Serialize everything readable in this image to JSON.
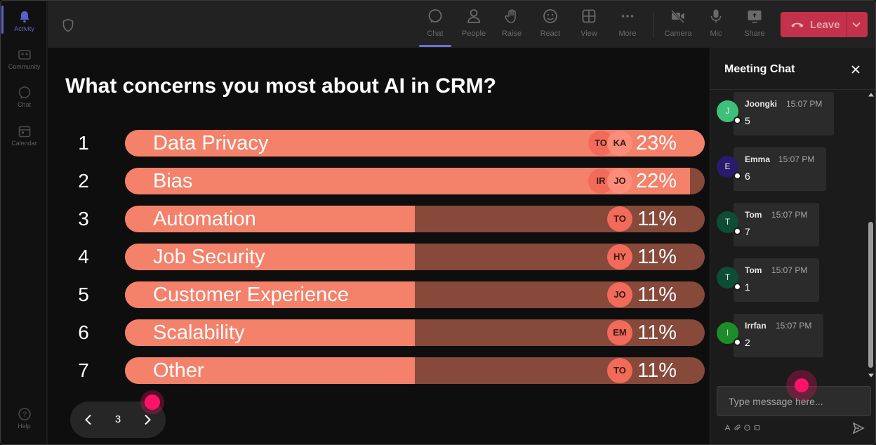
{
  "rail": {
    "items": [
      {
        "label": "Activity",
        "icon": "bell-icon"
      },
      {
        "label": "Community",
        "icon": "community-icon"
      },
      {
        "label": "Chat",
        "icon": "chat-icon"
      },
      {
        "label": "Calendar",
        "icon": "calendar-icon"
      },
      {
        "label": "Help",
        "icon": "help-icon"
      }
    ]
  },
  "toolbar": {
    "buttons": [
      {
        "label": "Chat",
        "icon": "chat-icon",
        "active": true
      },
      {
        "label": "People",
        "icon": "people-icon"
      },
      {
        "label": "Raise",
        "icon": "hand-icon"
      },
      {
        "label": "React",
        "icon": "smiley-icon"
      },
      {
        "label": "View",
        "icon": "grid-icon"
      },
      {
        "label": "More",
        "icon": "ellipsis-icon"
      },
      {
        "label": "Camera",
        "icon": "camera-off-icon"
      },
      {
        "label": "Mic",
        "icon": "mic-icon"
      },
      {
        "label": "Share",
        "icon": "share-icon"
      }
    ],
    "leave_label": "Leave",
    "colors": {
      "leave": "#c4314b",
      "active_tab": "#6e71d6"
    }
  },
  "poll": {
    "question": "What concerns you most about AI in CRM?",
    "options": [
      {
        "num": "1",
        "label": "Data Privacy",
        "percent": "23%",
        "fill": 1.0,
        "avatars": [
          "TO",
          "KA"
        ]
      },
      {
        "num": "2",
        "label": "Bias",
        "percent": "22%",
        "fill": 0.975,
        "avatars": [
          "IR",
          "JO"
        ]
      },
      {
        "num": "3",
        "label": "Automation",
        "percent": "11%",
        "fill": 0.5,
        "avatars": [
          "TO"
        ]
      },
      {
        "num": "4",
        "label": "Job Security",
        "percent": "11%",
        "fill": 0.5,
        "avatars": [
          "HY"
        ]
      },
      {
        "num": "5",
        "label": "Customer Experience",
        "percent": "11%",
        "fill": 0.5,
        "avatars": [
          "JO"
        ]
      },
      {
        "num": "6",
        "label": "Scalability",
        "percent": "11%",
        "fill": 0.5,
        "avatars": [
          "EM"
        ]
      },
      {
        "num": "7",
        "label": "Other",
        "percent": "11%",
        "fill": 0.5,
        "avatars": [
          "TO"
        ]
      }
    ],
    "colors": {
      "fill": "#f4816a",
      "track": "#86493a"
    },
    "pager": {
      "page": "3"
    }
  },
  "chat": {
    "title": "Meeting Chat",
    "messages": [
      {
        "initial": "J",
        "name": "Joongki",
        "time": "15:07 PM",
        "text": "5",
        "color": "#3fc07a"
      },
      {
        "initial": "E",
        "name": "Emma",
        "time": "15:07 PM",
        "text": "6",
        "color": "#2a1a6e"
      },
      {
        "initial": "T",
        "name": "Tom",
        "time": "15:07 PM",
        "text": "7",
        "color": "#0e4d35"
      },
      {
        "initial": "T",
        "name": "Tom",
        "time": "15:07 PM",
        "text": "1",
        "color": "#0e4d35"
      },
      {
        "initial": "I",
        "name": "Irrfan",
        "time": "15:07 PM",
        "text": "2",
        "color": "#1d8d2a"
      }
    ],
    "input_placeholder": "Type message here..."
  }
}
